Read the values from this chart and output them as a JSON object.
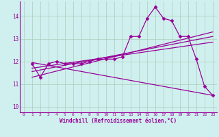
{
  "xlabel": "Windchill (Refroidissement éolien,°C)",
  "bg_color": "#cff0ee",
  "line_color": "#990099",
  "marker": "D",
  "markersize": 2.5,
  "linewidth": 0.9,
  "xlim": [
    -0.5,
    23.5
  ],
  "ylim": [
    9.75,
    14.65
  ],
  "yticks": [
    10,
    11,
    12,
    13,
    14
  ],
  "xticks": [
    0,
    1,
    2,
    3,
    4,
    5,
    6,
    7,
    8,
    9,
    10,
    11,
    12,
    13,
    14,
    15,
    16,
    17,
    18,
    19,
    20,
    21,
    22,
    23
  ],
  "grid_color": "#aaccbb",
  "series_with_markers": [
    [
      1,
      11.9
    ],
    [
      2,
      11.3
    ],
    [
      3,
      11.9
    ],
    [
      4,
      12.0
    ],
    [
      5,
      11.9
    ],
    [
      6,
      11.9
    ],
    [
      7,
      11.9
    ],
    [
      8,
      12.0
    ],
    [
      9,
      12.1
    ],
    [
      10,
      12.1
    ],
    [
      11,
      12.1
    ],
    [
      12,
      12.2
    ],
    [
      13,
      13.1
    ],
    [
      14,
      13.1
    ],
    [
      15,
      13.9
    ],
    [
      16,
      14.4
    ],
    [
      17,
      13.9
    ],
    [
      18,
      13.8
    ],
    [
      19,
      13.1
    ],
    [
      20,
      13.1
    ],
    [
      21,
      12.1
    ],
    [
      22,
      10.9
    ],
    [
      23,
      10.5
    ]
  ],
  "straight_lines": [
    {
      "x0": 1,
      "y0": 11.3,
      "x1": 23,
      "y1": 13.3
    },
    {
      "x0": 1,
      "y0": 11.55,
      "x1": 23,
      "y1": 13.1
    },
    {
      "x0": 1,
      "y0": 11.7,
      "x1": 23,
      "y1": 12.85
    },
    {
      "x0": 1,
      "y0": 11.95,
      "x1": 23,
      "y1": 10.5
    }
  ]
}
